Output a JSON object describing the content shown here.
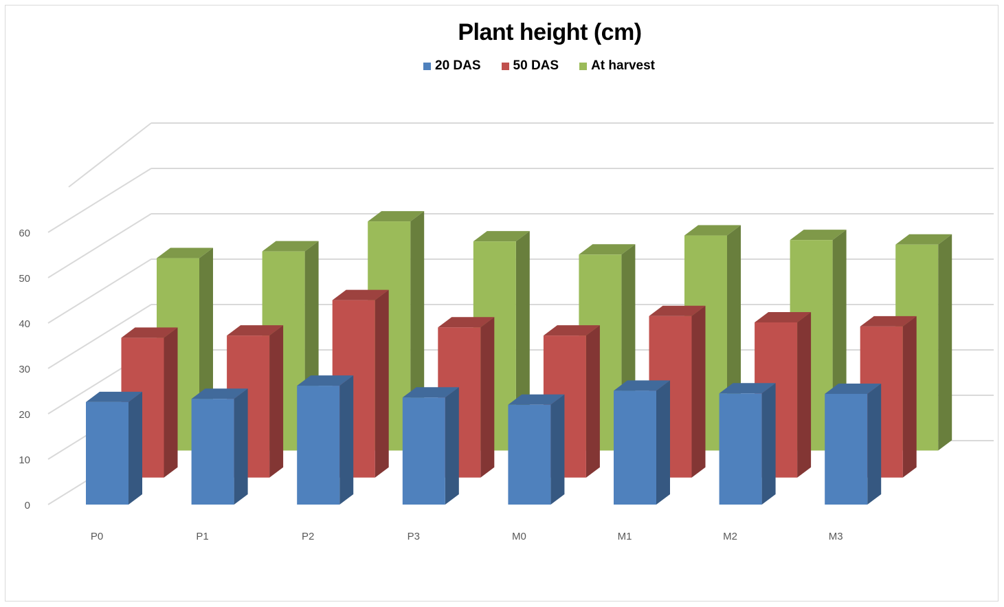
{
  "chart_data": {
    "type": "bar",
    "title": "Plant height (cm)",
    "xlabel": "",
    "ylabel": "",
    "categories": [
      "P0",
      "P1",
      "P2",
      "P3",
      "M0",
      "M1",
      "M2",
      "M3"
    ],
    "series": [
      {
        "name": "20 DAS",
        "values": [
          22.6,
          23.3,
          26.2,
          23.6,
          22.0,
          25.1,
          24.5,
          24.4
        ],
        "color": "#4f81bd"
      },
      {
        "name": "50 DAS",
        "values": [
          30.8,
          31.3,
          39.1,
          33.1,
          31.3,
          35.6,
          34.2,
          33.3
        ],
        "color": "#c0504d"
      },
      {
        "name": "At harvest",
        "values": [
          42.4,
          43.9,
          50.5,
          46.1,
          43.2,
          47.4,
          46.4,
          45.4
        ],
        "color": "#9bbb59"
      }
    ],
    "y_ticks": [
      "0",
      "10",
      "20",
      "30",
      "40",
      "50",
      "60"
    ],
    "ylim": [
      0,
      60
    ],
    "grid": true,
    "legend_position": "top",
    "projection": "3d-clustered-columns"
  }
}
